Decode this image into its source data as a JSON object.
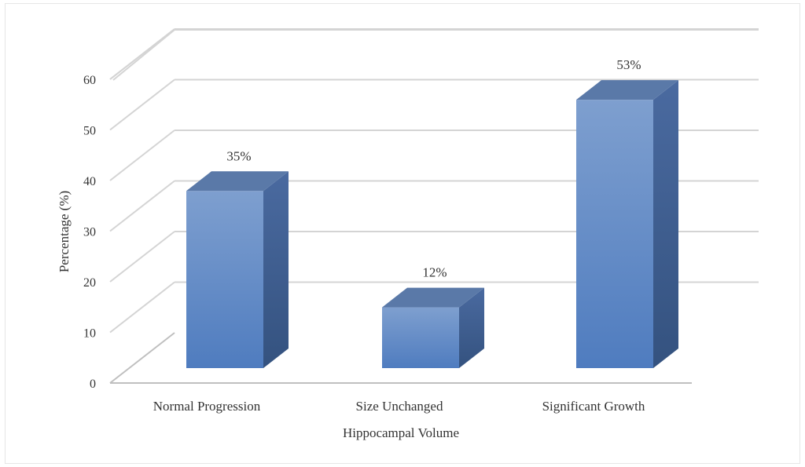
{
  "chart_data": {
    "type": "bar",
    "style": "3d-column",
    "title": "",
    "xlabel": "Hippocampal Volume",
    "ylabel": "Percentage (%)",
    "ylim": [
      0,
      60
    ],
    "yticks": [
      0,
      10,
      20,
      30,
      40,
      50,
      60
    ],
    "categories": [
      "Normal Progression",
      "Size Unchanged",
      "Significant Growth"
    ],
    "values": [
      35,
      12,
      53
    ],
    "data_labels": [
      "35%",
      "12%",
      "53%"
    ],
    "grid": true,
    "legend": "none",
    "colors": {
      "bar_front_top": "#7e9fcf",
      "bar_front_bottom": "#4f7cbf",
      "bar_side": "#3f5f92",
      "bar_top": "#5a79a8",
      "grid": "#d4d4d4",
      "axis": "#bfbfbf"
    }
  }
}
